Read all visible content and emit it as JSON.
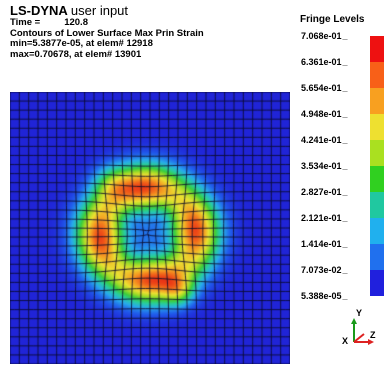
{
  "header": {
    "program": "LS-DYNA",
    "program_sub": "user input",
    "time_label": "Time =",
    "time_value": "120.8",
    "contour_title": "Contours of Lower Surface Max Prin Strain",
    "min_line": "min=5.3877e-05, at elem# 12918",
    "max_line": "max=0.70678, at elem# 13901"
  },
  "legend": {
    "title": "Fringe Levels",
    "levels": [
      "7.068e-01",
      "6.361e-01",
      "5.654e-01",
      "4.948e-01",
      "4.241e-01",
      "3.534e-01",
      "2.827e-01",
      "2.121e-01",
      "1.414e-01",
      "7.073e-02",
      "5.388e-05"
    ],
    "colors": [
      "#ee1111",
      "#f86018",
      "#f8a020",
      "#eee030",
      "#aae020",
      "#30d020",
      "#20c8a0",
      "#20b0ee",
      "#2070ee",
      "#2020dd"
    ]
  },
  "triad": {
    "y_label": "Y",
    "x_label": "X",
    "z_label": "Z"
  },
  "chart_data": {
    "type": "heatmap",
    "title": "Contours of Lower Surface Max Prin Strain",
    "min": 5.3877e-05,
    "max": 0.70678,
    "min_elem": 12918,
    "max_elem": 13901,
    "value_range": [
      5.388e-05,
      0.7068
    ],
    "grid": true,
    "legend_position": "right"
  }
}
